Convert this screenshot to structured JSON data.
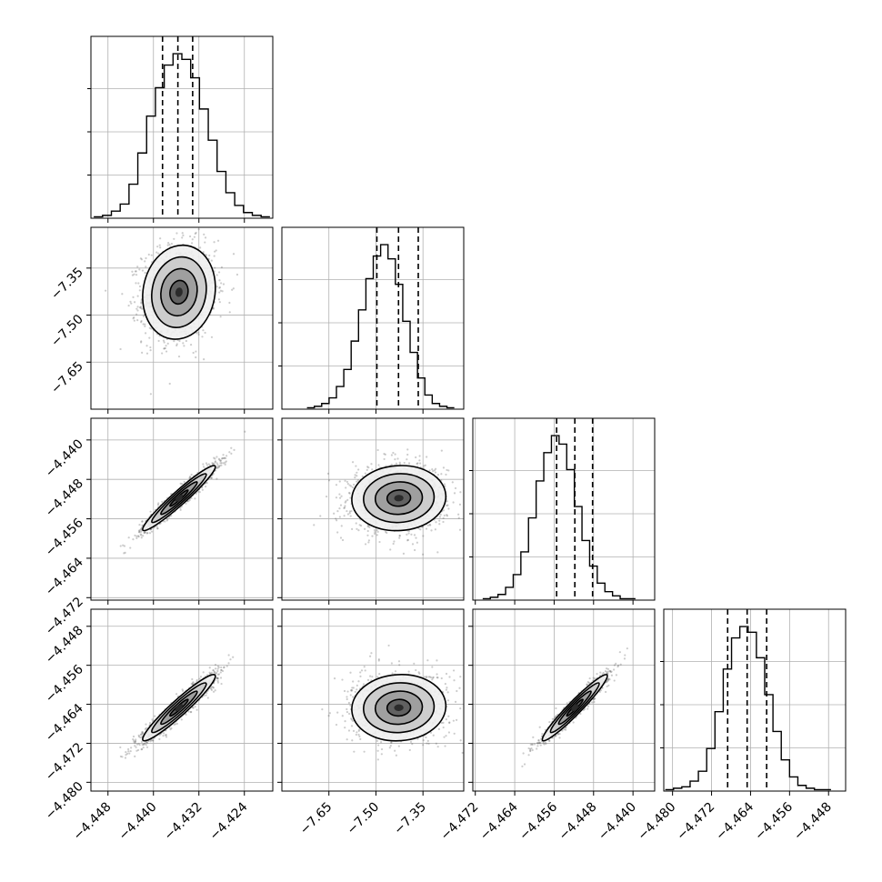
{
  "chart_data": {
    "type": "corner",
    "parameters": 4,
    "grid": true,
    "colors": {
      "line": "#000000",
      "grid": "#b0b0b0",
      "points": "#555555",
      "density_dark": "#2b2b2b"
    },
    "axes": {
      "p0": {
        "range": [
          -4.451,
          -4.419
        ],
        "ticks": [
          {
            "v": -4.448,
            "label": "−4.448"
          },
          {
            "v": -4.44,
            "label": "−4.440"
          },
          {
            "v": -4.432,
            "label": "−4.432"
          },
          {
            "v": -4.424,
            "label": "−4.424"
          }
        ]
      },
      "p1": {
        "range": [
          -7.8,
          -7.22
        ],
        "ticks": [
          {
            "v": -7.65,
            "label": "−7.65"
          },
          {
            "v": -7.5,
            "label": "−7.50"
          },
          {
            "v": -7.35,
            "label": "−7.35"
          }
        ]
      },
      "p2": {
        "range": [
          -4.4725,
          -4.4356
        ],
        "ticks": [
          {
            "v": -4.472,
            "label": "−4.472"
          },
          {
            "v": -4.464,
            "label": "−4.464"
          },
          {
            "v": -4.456,
            "label": "−4.456"
          },
          {
            "v": -4.448,
            "label": "−4.448"
          },
          {
            "v": -4.44,
            "label": "−4.440"
          }
        ]
      },
      "p3": {
        "range": [
          -4.4818,
          -4.4445
        ],
        "ticks": [
          {
            "v": -4.48,
            "label": "−4.480"
          },
          {
            "v": -4.472,
            "label": "−4.472"
          },
          {
            "v": -4.464,
            "label": "−4.464"
          },
          {
            "v": -4.456,
            "label": "−4.456"
          },
          {
            "v": -4.448,
            "label": "−4.448"
          }
        ]
      }
    },
    "histograms": [
      {
        "param": "p0",
        "mean": -4.4355,
        "std": 0.0032,
        "quantiles": [
          -4.4384,
          -4.4357,
          -4.4331
        ],
        "counts": [
          1,
          2,
          5,
          10,
          24,
          46,
          72,
          92,
          108,
          116,
          112,
          99,
          77,
          55,
          33,
          18,
          9,
          4,
          2,
          1
        ],
        "bins_range": [
          -4.4505,
          -4.4195
        ]
      },
      {
        "param": "p1",
        "mean": -7.427,
        "std": 0.075,
        "quantiles": [
          -7.497,
          -7.428,
          -7.365
        ],
        "counts": [
          1,
          2,
          4,
          8,
          16,
          28,
          48,
          70,
          92,
          108,
          116,
          106,
          88,
          62,
          40,
          22,
          10,
          4,
          2,
          1
        ],
        "bins_range": [
          -7.72,
          -7.25
        ]
      },
      {
        "param": "p2",
        "mean": -4.4518,
        "std": 0.0033,
        "quantiles": [
          -4.4555,
          -4.4518,
          -4.4482
        ],
        "counts": [
          1,
          2,
          4,
          9,
          18,
          34,
          58,
          84,
          104,
          116,
          110,
          92,
          66,
          42,
          24,
          12,
          6,
          3,
          1,
          1
        ],
        "bins_range": [
          -4.4705,
          -4.4395
        ]
      },
      {
        "param": "p3",
        "mean": -4.4647,
        "std": 0.0034,
        "quantiles": [
          -4.4687,
          -4.4647,
          -4.4607
        ],
        "counts": [
          1,
          2,
          3,
          7,
          14,
          30,
          56,
          86,
          108,
          116,
          112,
          94,
          68,
          42,
          22,
          10,
          4,
          2,
          1,
          1
        ],
        "bins_range": [
          -4.4815,
          -4.4475
        ]
      }
    ],
    "correlations": {
      "p1_p0": 0.1,
      "p2_p0": 0.96,
      "p2_p1": 0.05,
      "p3_p0": 0.95,
      "p3_p1": 0.05,
      "p3_p2": 0.96
    },
    "contour_levels_sigma": [
      0.5,
      1.0,
      1.5,
      2.0
    ]
  }
}
